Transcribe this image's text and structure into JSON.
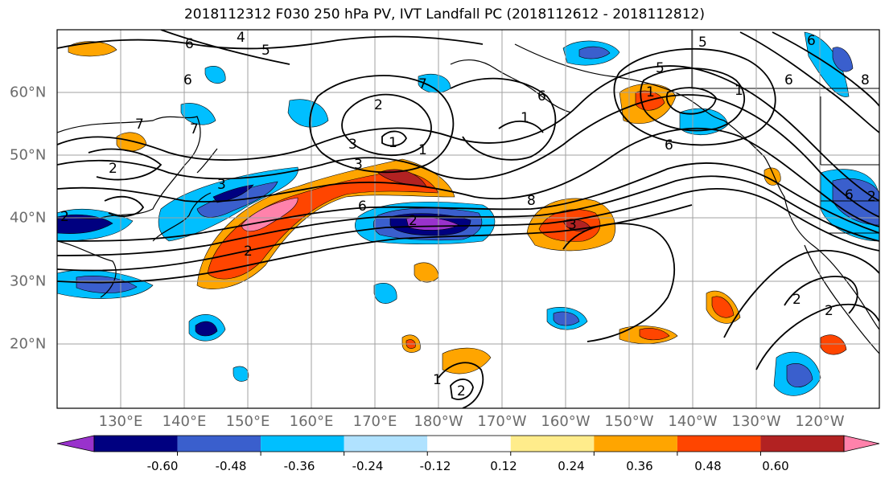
{
  "title": "2018112312 F030 250 hPa PV, IVT Landfall PC (2018112612 - 2018112812)",
  "lon_labels": [
    "130°E",
    "140°E",
    "150°E",
    "160°E",
    "170°E",
    "180°W",
    "170°W",
    "160°W",
    "150°W",
    "140°W",
    "130°W",
    "120°W"
  ],
  "lat_labels": [
    "60°N",
    "50°N",
    "40°N",
    "30°N",
    "20°N"
  ],
  "colorbar": {
    "ticks": [
      "-0.60",
      "-0.48",
      "-0.36",
      "-0.24",
      "-0.12",
      "0.12",
      "0.24",
      "0.36",
      "0.48",
      "0.60"
    ],
    "colors": [
      "#9932cc",
      "#000080",
      "#3a5fcd",
      "#00bfff",
      "#b0e2ff",
      "#ffffff",
      "#ffec8b",
      "#ffa500",
      "#ff4500",
      "#b22222",
      "#ff82ab"
    ]
  },
  "contour_labels": [
    "4",
    "5",
    "6",
    "5",
    "6",
    "1",
    "1",
    "2",
    "3",
    "3",
    "3",
    "1",
    "2",
    "6",
    "7",
    "7",
    "6",
    "2",
    "2",
    "6",
    "3",
    "8",
    "7",
    "1",
    "6",
    "2",
    "2",
    "2",
    "1",
    "1",
    "5",
    "6",
    "6",
    "8",
    "2",
    "2"
  ]
}
